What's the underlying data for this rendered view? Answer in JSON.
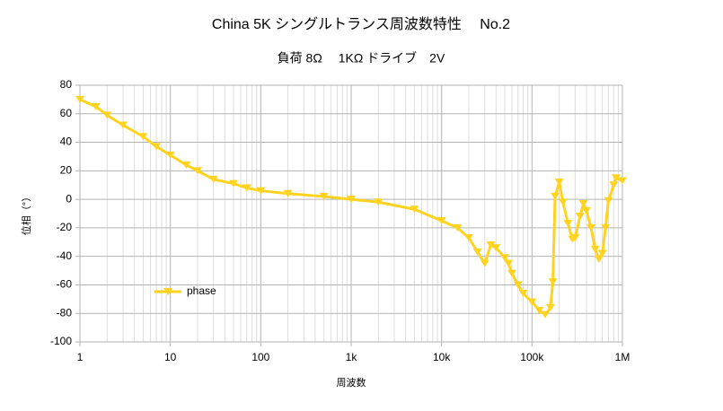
{
  "chart_data": {
    "type": "line",
    "title": "China 5K シングルトランス周波数特性　 No.2",
    "subtitle": "負荷 8Ω　 1KΩ ドライブ　2V",
    "x_label": "周波数",
    "y_label": "位相（°）",
    "x_scale": "log",
    "xlim": [
      1,
      1000000
    ],
    "xticks": [
      1,
      10,
      100,
      {
        "value": 1000,
        "label": "1k"
      },
      {
        "value": 10000,
        "label": "10k"
      },
      {
        "value": 100000,
        "label": "100k"
      },
      {
        "value": 1000000,
        "label": "1M"
      }
    ],
    "xminorticks": [
      2,
      3,
      4,
      5,
      6,
      7,
      8,
      9,
      20,
      30,
      40,
      50,
      60,
      70,
      80,
      90,
      200,
      300,
      400,
      500,
      600,
      700,
      800,
      900,
      2000,
      3000,
      4000,
      5000,
      6000,
      7000,
      8000,
      9000,
      20000,
      30000,
      40000,
      50000,
      60000,
      70000,
      80000,
      90000,
      200000,
      300000,
      400000,
      500000,
      600000,
      700000,
      800000,
      900000
    ],
    "ylim": [
      -100,
      80
    ],
    "yticks": [
      -100,
      -80,
      -60,
      -40,
      -20,
      0,
      20,
      40,
      60,
      80
    ],
    "grid": true,
    "legend": "left",
    "x": [
      1,
      1.5,
      2,
      3,
      5,
      7,
      10,
      15,
      20,
      30,
      50,
      70,
      100,
      200,
      500,
      1000,
      2000,
      5000,
      10000,
      15000,
      20000,
      25000,
      30000,
      35000,
      40000,
      50000,
      55000,
      60000,
      70000,
      80000,
      100000,
      120000,
      140000,
      160000,
      170000,
      180000,
      200000,
      220000,
      250000,
      280000,
      300000,
      340000,
      370000,
      400000,
      450000,
      500000,
      550000,
      600000,
      650000,
      700000,
      800000,
      850000,
      1000000
    ],
    "series": [
      {
        "name": "phase",
        "color": "#ffd320",
        "values": [
          70,
          65,
          59,
          52,
          44,
          37,
          31,
          24,
          20,
          14,
          11,
          8,
          6,
          4,
          2,
          0,
          -2,
          -7,
          -15,
          -20,
          -27,
          -37,
          -45,
          -32,
          -34,
          -41,
          -45,
          -52,
          -60,
          -66,
          -72,
          -78,
          -81,
          -76,
          -58,
          2,
          12,
          -2,
          -17,
          -28,
          -27,
          -12,
          -3,
          -8,
          -20,
          -35,
          -42,
          -38,
          -20,
          -1,
          10,
          15,
          13
        ]
      }
    ]
  }
}
